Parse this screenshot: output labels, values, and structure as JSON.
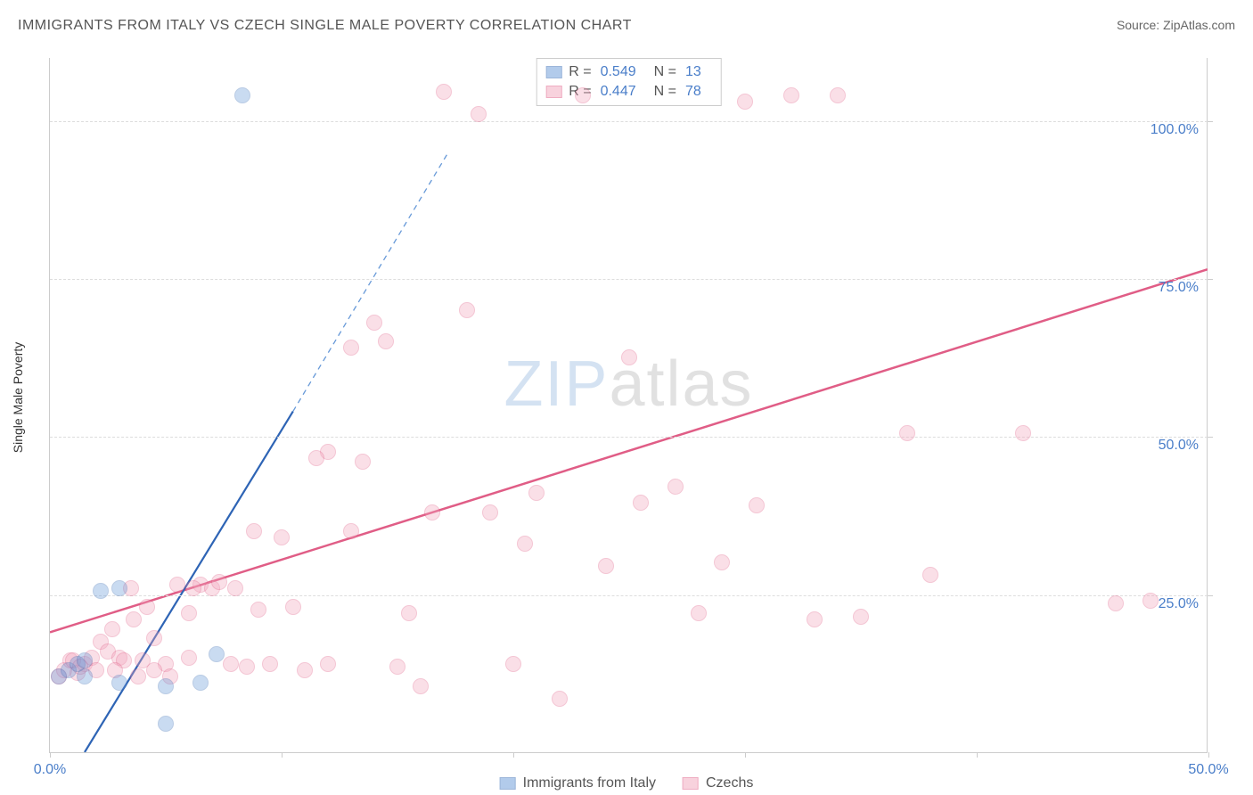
{
  "title": "IMMIGRANTS FROM ITALY VS CZECH SINGLE MALE POVERTY CORRELATION CHART",
  "source": "Source: ZipAtlas.com",
  "y_axis_label": "Single Male Poverty",
  "watermark": {
    "zip": "ZIP",
    "atlas": "atlas"
  },
  "chart": {
    "type": "scatter",
    "xlim": [
      0,
      50
    ],
    "ylim": [
      0,
      110
    ],
    "x_ticks": [
      0,
      10,
      20,
      30,
      40,
      50
    ],
    "x_tick_labels": [
      "0.0%",
      "",
      "",
      "",
      "",
      "50.0%"
    ],
    "y_ticks": [
      25,
      50,
      75,
      100
    ],
    "y_tick_labels": [
      "25.0%",
      "50.0%",
      "75.0%",
      "100.0%"
    ],
    "grid_color": "#dddddd",
    "border_color": "#cccccc",
    "background_color": "#ffffff",
    "marker_radius": 9,
    "marker_opacity": 0.35,
    "series": [
      {
        "name": "Immigrants from Italy",
        "fill": "#6799d8",
        "stroke": "#3d6fb5",
        "R": "0.549",
        "N": "13",
        "trend": {
          "x1": 1.5,
          "y1": 0,
          "x2": 10.5,
          "y2": 54,
          "dash_extend_x2": 17.2,
          "dash_extend_y2": 95,
          "width": 2.2
        },
        "points": [
          [
            0.4,
            12
          ],
          [
            0.8,
            13
          ],
          [
            1.2,
            14
          ],
          [
            1.5,
            12
          ],
          [
            1.5,
            14.5
          ],
          [
            2.2,
            25.5
          ],
          [
            3.0,
            11
          ],
          [
            3.0,
            26
          ],
          [
            5.0,
            10.5
          ],
          [
            7.2,
            15.5
          ],
          [
            5.0,
            4.5
          ],
          [
            6.5,
            11
          ],
          [
            8.3,
            104
          ]
        ]
      },
      {
        "name": "Czechs",
        "fill": "#f2a6bd",
        "stroke": "#e05d86",
        "R": "0.447",
        "N": "78",
        "trend": {
          "x1": 0,
          "y1": 19,
          "x2": 50,
          "y2": 76.5,
          "width": 2.5
        },
        "points": [
          [
            0.4,
            12
          ],
          [
            0.6,
            13
          ],
          [
            0.9,
            14.5
          ],
          [
            1.2,
            12.5
          ],
          [
            1.5,
            14
          ],
          [
            1.8,
            15
          ],
          [
            2.0,
            13
          ],
          [
            2.2,
            17.5
          ],
          [
            2.5,
            16
          ],
          [
            2.7,
            19.5
          ],
          [
            3.0,
            15
          ],
          [
            3.2,
            14.5
          ],
          [
            3.6,
            21
          ],
          [
            3.8,
            12
          ],
          [
            4.0,
            14.5
          ],
          [
            4.2,
            23
          ],
          [
            4.5,
            18
          ],
          [
            5.0,
            14
          ],
          [
            5.5,
            26.5
          ],
          [
            6.0,
            22
          ],
          [
            6.5,
            26.5
          ],
          [
            7.0,
            26
          ],
          [
            7.3,
            27
          ],
          [
            8.0,
            26
          ],
          [
            8.5,
            13.5
          ],
          [
            9.0,
            22.5
          ],
          [
            9.5,
            14
          ],
          [
            10.0,
            34
          ],
          [
            10.5,
            23
          ],
          [
            11.0,
            13
          ],
          [
            12.0,
            47.5
          ],
          [
            12.0,
            14
          ],
          [
            13.0,
            35
          ],
          [
            13.5,
            46
          ],
          [
            14.0,
            68
          ],
          [
            14.5,
            65
          ],
          [
            15.0,
            13.5
          ],
          [
            15.5,
            22
          ],
          [
            16.0,
            10.5
          ],
          [
            17.0,
            104.5
          ],
          [
            18.0,
            70
          ],
          [
            18.5,
            101
          ],
          [
            19.0,
            38
          ],
          [
            20.0,
            14
          ],
          [
            20.5,
            33
          ],
          [
            21.0,
            41
          ],
          [
            22.0,
            8.5
          ],
          [
            23.0,
            104
          ],
          [
            24.0,
            29.5
          ],
          [
            25.0,
            62.5
          ],
          [
            25.5,
            39.5
          ],
          [
            27.0,
            42
          ],
          [
            28.0,
            22
          ],
          [
            29.0,
            30
          ],
          [
            30.0,
            103
          ],
          [
            30.5,
            39
          ],
          [
            32.0,
            104
          ],
          [
            33.0,
            21
          ],
          [
            34.0,
            104
          ],
          [
            35.0,
            21.5
          ],
          [
            37.0,
            50.5
          ],
          [
            38.0,
            28
          ],
          [
            42.0,
            50.5
          ],
          [
            46.0,
            23.5
          ],
          [
            47.5,
            24
          ],
          [
            4.5,
            13
          ],
          [
            5.2,
            12
          ],
          [
            6.0,
            15
          ],
          [
            1.0,
            14.5
          ],
          [
            1.3,
            13.5
          ],
          [
            2.8,
            13
          ],
          [
            3.5,
            26
          ],
          [
            11.5,
            46.5
          ],
          [
            13.0,
            64
          ],
          [
            7.8,
            14
          ],
          [
            8.8,
            35
          ],
          [
            6.2,
            26
          ],
          [
            16.5,
            38
          ]
        ]
      }
    ]
  },
  "stats_box": {
    "label_R": "R =",
    "label_N": "N ="
  },
  "bottom_legend": {
    "items": [
      "Immigrants from Italy",
      "Czechs"
    ]
  }
}
